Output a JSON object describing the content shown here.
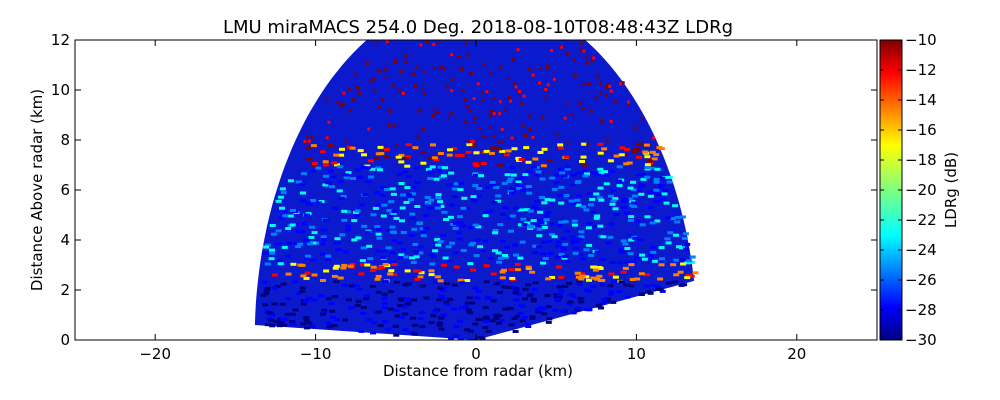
{
  "chart_data": {
    "type": "heatmap",
    "title": "LMU miraMACS 254.0 Deg. 2018-08-10T08:48:43Z  LDRg",
    "xlabel": "Distance from radar (km)",
    "ylabel": "Distance Above radar  (km)",
    "xlim": [
      -25,
      25
    ],
    "ylim": [
      0,
      12
    ],
    "x_ticks": [
      -20,
      -10,
      0,
      10,
      20
    ],
    "y_ticks": [
      0,
      2,
      4,
      6,
      8,
      10,
      12
    ],
    "colorbar": {
      "label": "LDRg (dB)",
      "range": [
        -30,
        -10
      ],
      "ticks": [
        -10,
        -12,
        -14,
        -16,
        -18,
        -20,
        -22,
        -24,
        -26,
        -28,
        -30
      ],
      "colormap": "jet"
    },
    "scan": {
      "elevation_deg": 254.0,
      "left_end_km": [
        -13.8,
        0.6
      ],
      "right_end_km": [
        13.8,
        2.4
      ],
      "max_range_km": 13.8
    },
    "features": [
      {
        "name": "bright melting layer",
        "height_km": 2.8,
        "ldr_db": -16
      },
      {
        "name": "cloud layer",
        "height_range_km": [
          3.0,
          7.6
        ],
        "ldr_db": -26
      },
      {
        "name": "cloud top noise band",
        "height_km": 7.4,
        "ldr_db": -14
      },
      {
        "name": "sparse noise above cloud",
        "height_range_km": [
          8.0,
          12.0
        ],
        "ldr_db": -10
      }
    ]
  },
  "colors": {
    "jet": [
      "#00007f",
      "#0000ff",
      "#007fff",
      "#00ffff",
      "#7fff7f",
      "#ffff00",
      "#ff7f00",
      "#ff0000",
      "#7f0000"
    ]
  }
}
